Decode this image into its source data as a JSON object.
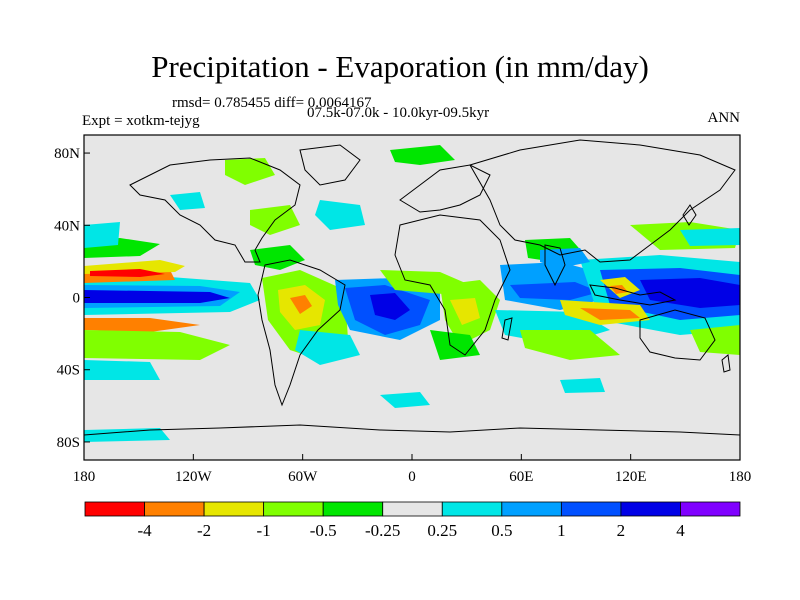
{
  "title": "Precipitation - Evaporation (in mm/day)",
  "stats_line": "rmsd= 0.785455 diff= 0.0064167",
  "experiment_label": "Expt = xotkm-tejyg",
  "period_label": "07.5k-07.0k - 10.0kyr-09.5kyr",
  "season_label": "ANN",
  "map": {
    "projection": "cylindrical equidistant",
    "lon_range": [
      -180,
      180
    ],
    "lat_range": [
      -90,
      90
    ],
    "background_color": "#e6e6e6",
    "lat_ticks": [
      {
        "value": 80,
        "label": "80N"
      },
      {
        "value": 40,
        "label": "40N"
      },
      {
        "value": 0,
        "label": "0"
      },
      {
        "value": -40,
        "label": "40S"
      },
      {
        "value": -80,
        "label": "80S"
      }
    ],
    "lon_ticks": [
      {
        "value": -180,
        "label": "180"
      },
      {
        "value": -120,
        "label": "120W"
      },
      {
        "value": -60,
        "label": "60W"
      },
      {
        "value": 0,
        "label": "0"
      },
      {
        "value": 60,
        "label": "60E"
      },
      {
        "value": 120,
        "label": "120E"
      },
      {
        "value": 180,
        "label": "180"
      }
    ]
  },
  "colorbar": {
    "colors": [
      "#ff0000",
      "#ff8000",
      "#e6e600",
      "#80ff00",
      "#00e600",
      "#e6e6e6",
      "#00e6e6",
      "#00a0ff",
      "#0050ff",
      "#0000e6",
      "#8000ff"
    ],
    "labels": [
      "-4",
      "-2",
      "-1",
      "-0.5",
      "-0.25",
      "0.25",
      "0.5",
      "1",
      "2",
      "4"
    ]
  }
}
